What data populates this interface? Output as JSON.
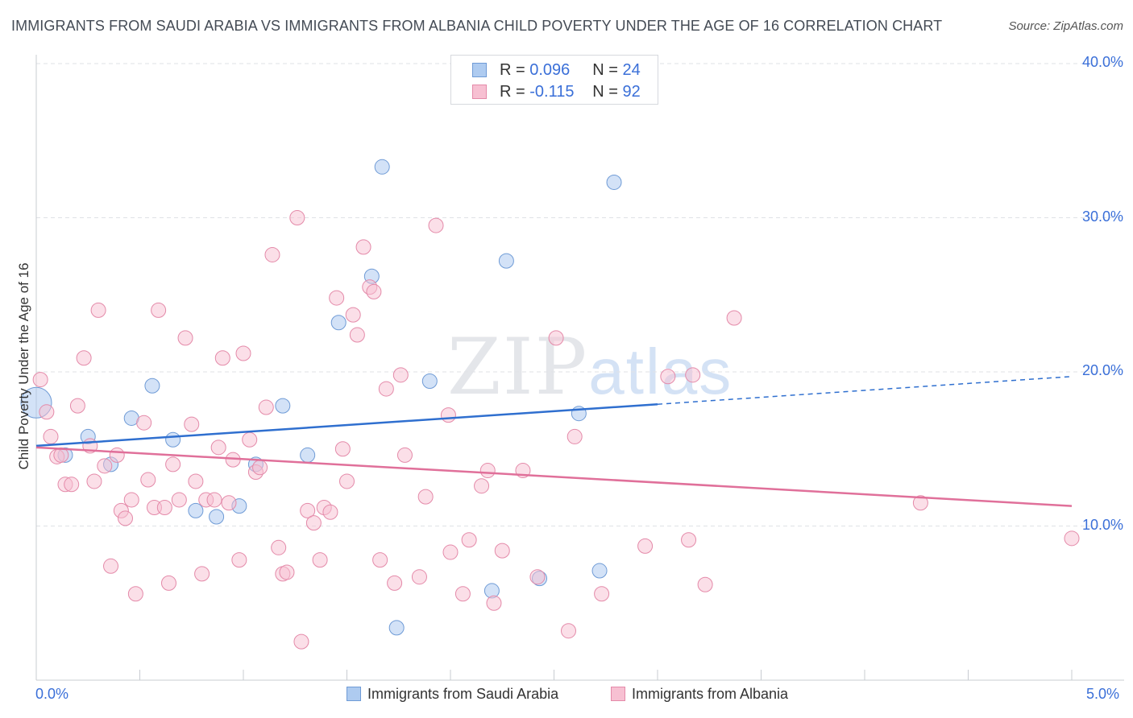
{
  "title": "IMMIGRANTS FROM SAUDI ARABIA VS IMMIGRANTS FROM ALBANIA CHILD POVERTY UNDER THE AGE OF 16 CORRELATION CHART",
  "source": "Source: ZipAtlas.com",
  "watermark": {
    "zip": "ZIP",
    "atlas": "atlas"
  },
  "legend": [
    {
      "r_label": "R = ",
      "r_value": "0.096",
      "n_label": "N = ",
      "n_value": "24"
    },
    {
      "r_label": "R = ",
      "r_value": "-0.115",
      "n_label": "N = ",
      "n_value": "92"
    }
  ],
  "chart_data": {
    "type": "scatter",
    "xlabel": "",
    "ylabel": "Child Poverty Under the Age of 16",
    "xlim": [
      0,
      5
    ],
    "ylim": [
      0,
      40
    ],
    "x_tick_labels": [
      "0.0%",
      "5.0%"
    ],
    "y_ticks": [
      10,
      20,
      30,
      40
    ],
    "y_tick_labels": [
      "10.0%",
      "20.0%",
      "30.0%",
      "40.0%"
    ],
    "grid": "horizontal dashed",
    "legend_position": "top-center",
    "series": [
      {
        "name": "Immigrants from Saudi Arabia",
        "color": "#aecbf0",
        "stroke": "#6f9bd6",
        "trend_color": "#2f6fcf",
        "r": 0.096,
        "n": 24,
        "trend": {
          "x": [
            0,
            3.0
          ],
          "y": [
            15.2,
            17.9
          ],
          "extend_to_x": 5.0,
          "extend_to_y": 19.7
        },
        "points": [
          {
            "x": 0.0,
            "y": 18.0,
            "big": true
          },
          {
            "x": 0.14,
            "y": 14.6
          },
          {
            "x": 0.25,
            "y": 15.8
          },
          {
            "x": 0.36,
            "y": 14.0
          },
          {
            "x": 0.46,
            "y": 17.0
          },
          {
            "x": 0.56,
            "y": 19.1
          },
          {
            "x": 0.66,
            "y": 15.6
          },
          {
            "x": 0.77,
            "y": 11.0
          },
          {
            "x": 0.87,
            "y": 10.6
          },
          {
            "x": 0.98,
            "y": 11.3
          },
          {
            "x": 1.06,
            "y": 14.0
          },
          {
            "x": 1.19,
            "y": 17.8
          },
          {
            "x": 1.31,
            "y": 14.6
          },
          {
            "x": 1.46,
            "y": 23.2
          },
          {
            "x": 1.62,
            "y": 26.2
          },
          {
            "x": 1.67,
            "y": 33.3
          },
          {
            "x": 1.74,
            "y": 3.4
          },
          {
            "x": 1.9,
            "y": 19.4
          },
          {
            "x": 2.2,
            "y": 5.8
          },
          {
            "x": 2.27,
            "y": 27.2
          },
          {
            "x": 2.43,
            "y": 6.6
          },
          {
            "x": 2.62,
            "y": 17.3
          },
          {
            "x": 2.72,
            "y": 7.1
          },
          {
            "x": 2.79,
            "y": 32.3
          }
        ]
      },
      {
        "name": "Immigrants from Albania",
        "color": "#f7c0d2",
        "stroke": "#e48aa9",
        "trend_color": "#e0709a",
        "r": -0.115,
        "n": 92,
        "trend": {
          "x": [
            0,
            5.0
          ],
          "y": [
            15.1,
            11.3
          ]
        },
        "points": [
          {
            "x": 0.02,
            "y": 19.5
          },
          {
            "x": 0.05,
            "y": 17.4
          },
          {
            "x": 0.07,
            "y": 15.8
          },
          {
            "x": 0.1,
            "y": 14.5
          },
          {
            "x": 0.12,
            "y": 14.6
          },
          {
            "x": 0.14,
            "y": 12.7
          },
          {
            "x": 0.17,
            "y": 12.7
          },
          {
            "x": 0.2,
            "y": 17.8
          },
          {
            "x": 0.23,
            "y": 20.9
          },
          {
            "x": 0.26,
            "y": 15.2
          },
          {
            "x": 0.28,
            "y": 12.9
          },
          {
            "x": 0.3,
            "y": 24.0
          },
          {
            "x": 0.33,
            "y": 13.9
          },
          {
            "x": 0.36,
            "y": 7.4
          },
          {
            "x": 0.39,
            "y": 14.6
          },
          {
            "x": 0.41,
            "y": 11.0
          },
          {
            "x": 0.43,
            "y": 10.5
          },
          {
            "x": 0.46,
            "y": 11.7
          },
          {
            "x": 0.48,
            "y": 5.6
          },
          {
            "x": 0.52,
            "y": 16.7
          },
          {
            "x": 0.54,
            "y": 13.0
          },
          {
            "x": 0.57,
            "y": 11.2
          },
          {
            "x": 0.59,
            "y": 24.0
          },
          {
            "x": 0.62,
            "y": 11.2
          },
          {
            "x": 0.64,
            "y": 6.3
          },
          {
            "x": 0.66,
            "y": 14.0
          },
          {
            "x": 0.69,
            "y": 11.7
          },
          {
            "x": 0.72,
            "y": 22.2
          },
          {
            "x": 0.75,
            "y": 16.6
          },
          {
            "x": 0.77,
            "y": 12.9
          },
          {
            "x": 0.8,
            "y": 6.9
          },
          {
            "x": 0.82,
            "y": 11.7
          },
          {
            "x": 0.86,
            "y": 11.7
          },
          {
            "x": 0.88,
            "y": 15.1
          },
          {
            "x": 0.9,
            "y": 20.9
          },
          {
            "x": 0.93,
            "y": 11.5
          },
          {
            "x": 0.95,
            "y": 14.3
          },
          {
            "x": 0.98,
            "y": 7.8
          },
          {
            "x": 1.0,
            "y": 21.2
          },
          {
            "x": 1.03,
            "y": 15.6
          },
          {
            "x": 1.06,
            "y": 13.5
          },
          {
            "x": 1.08,
            "y": 13.8
          },
          {
            "x": 1.11,
            "y": 17.7
          },
          {
            "x": 1.14,
            "y": 27.6
          },
          {
            "x": 1.17,
            "y": 8.6
          },
          {
            "x": 1.19,
            "y": 6.9
          },
          {
            "x": 1.21,
            "y": 7.0
          },
          {
            "x": 1.26,
            "y": 30.0
          },
          {
            "x": 1.28,
            "y": 2.5
          },
          {
            "x": 1.31,
            "y": 11.0
          },
          {
            "x": 1.34,
            "y": 10.2
          },
          {
            "x": 1.37,
            "y": 7.8
          },
          {
            "x": 1.39,
            "y": 11.2
          },
          {
            "x": 1.42,
            "y": 10.9
          },
          {
            "x": 1.45,
            "y": 24.8
          },
          {
            "x": 1.48,
            "y": 15.0
          },
          {
            "x": 1.5,
            "y": 12.9
          },
          {
            "x": 1.53,
            "y": 23.7
          },
          {
            "x": 1.55,
            "y": 22.4
          },
          {
            "x": 1.58,
            "y": 28.1
          },
          {
            "x": 1.61,
            "y": 25.5
          },
          {
            "x": 1.63,
            "y": 25.2
          },
          {
            "x": 1.66,
            "y": 7.8
          },
          {
            "x": 1.69,
            "y": 18.9
          },
          {
            "x": 1.73,
            "y": 6.3
          },
          {
            "x": 1.76,
            "y": 19.8
          },
          {
            "x": 1.78,
            "y": 14.6
          },
          {
            "x": 1.85,
            "y": 6.7
          },
          {
            "x": 1.88,
            "y": 11.9
          },
          {
            "x": 1.93,
            "y": 29.5
          },
          {
            "x": 1.99,
            "y": 17.2
          },
          {
            "x": 2.0,
            "y": 8.3
          },
          {
            "x": 2.06,
            "y": 5.6
          },
          {
            "x": 2.09,
            "y": 9.1
          },
          {
            "x": 2.15,
            "y": 12.6
          },
          {
            "x": 2.18,
            "y": 13.6
          },
          {
            "x": 2.21,
            "y": 5.0
          },
          {
            "x": 2.25,
            "y": 8.4
          },
          {
            "x": 2.35,
            "y": 13.6
          },
          {
            "x": 2.42,
            "y": 6.7
          },
          {
            "x": 2.51,
            "y": 22.2
          },
          {
            "x": 2.57,
            "y": 3.2
          },
          {
            "x": 2.6,
            "y": 15.8
          },
          {
            "x": 2.73,
            "y": 5.6
          },
          {
            "x": 2.94,
            "y": 8.7
          },
          {
            "x": 3.05,
            "y": 19.7
          },
          {
            "x": 3.15,
            "y": 9.1
          },
          {
            "x": 3.17,
            "y": 19.8
          },
          {
            "x": 3.23,
            "y": 6.2
          },
          {
            "x": 3.37,
            "y": 23.5
          },
          {
            "x": 4.27,
            "y": 11.5
          },
          {
            "x": 5.0,
            "y": 9.2
          }
        ]
      }
    ]
  }
}
